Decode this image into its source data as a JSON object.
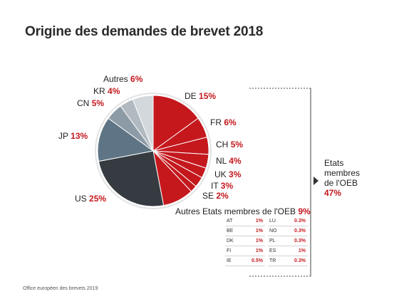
{
  "title": "Origine des demandes de brevet 2018",
  "footer": "Office européen des brevets 2019",
  "colors": {
    "accent": "#c4181d",
    "us": "#353b41",
    "jp": "#5f7585",
    "cn": "#8d9ba6",
    "kr": "#b1bac1",
    "autres": "#d3d8dc"
  },
  "chart_data": {
    "type": "pie",
    "slices": [
      {
        "label": "DE",
        "value": 15,
        "pct": "15%",
        "group": "epo"
      },
      {
        "label": "FR",
        "value": 6,
        "pct": "6%",
        "group": "epo"
      },
      {
        "label": "CH",
        "value": 5,
        "pct": "5%",
        "group": "epo"
      },
      {
        "label": "NL",
        "value": 4,
        "pct": "4%",
        "group": "epo"
      },
      {
        "label": "UK",
        "value": 3,
        "pct": "3%",
        "group": "epo"
      },
      {
        "label": "IT",
        "value": 3,
        "pct": "3%",
        "group": "epo"
      },
      {
        "label": "SE",
        "value": 2,
        "pct": "2%",
        "group": "epo"
      },
      {
        "label": "Autres Etats membres de l'OEB",
        "value": 9,
        "pct": "9%",
        "group": "epo"
      },
      {
        "label": "US",
        "value": 25,
        "pct": "25%",
        "group": "other"
      },
      {
        "label": "JP",
        "value": 13,
        "pct": "13%",
        "group": "other"
      },
      {
        "label": "CN",
        "value": 5,
        "pct": "5%",
        "group": "other"
      },
      {
        "label": "KR",
        "value": 4,
        "pct": "4%",
        "group": "other"
      },
      {
        "label": "Autres",
        "value": 6,
        "pct": "6%",
        "group": "other"
      }
    ],
    "group_label": {
      "line1": "Etats",
      "line2": "membres",
      "line3": "de l'OEB",
      "pct": "47%"
    },
    "other_members_table": [
      {
        "country": "AT",
        "pct": "1%"
      },
      {
        "country": "LU",
        "pct": "0.3%"
      },
      {
        "country": "BE",
        "pct": "1%"
      },
      {
        "country": "NO",
        "pct": "0.3%"
      },
      {
        "country": "DK",
        "pct": "1%"
      },
      {
        "country": "PL",
        "pct": "0.3%"
      },
      {
        "country": "FI",
        "pct": "1%"
      },
      {
        "country": "ES",
        "pct": "1%"
      },
      {
        "country": "IE",
        "pct": "0.5%"
      },
      {
        "country": "TR",
        "pct": "0.3%"
      }
    ]
  }
}
